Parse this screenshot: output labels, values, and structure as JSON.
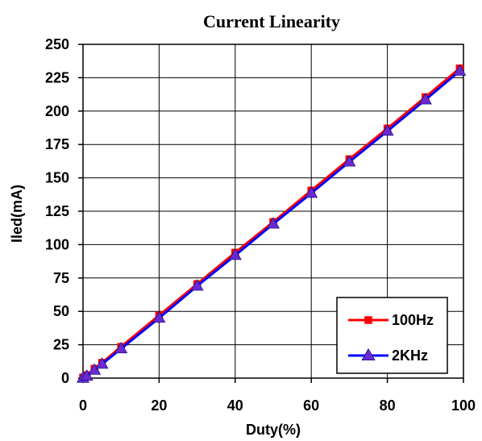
{
  "chart_data": {
    "type": "line",
    "title": "Current Linearity",
    "xlabel": "Duty(%)",
    "ylabel": "Iled(mA)",
    "xlim": [
      0,
      100
    ],
    "ylim": [
      0,
      250
    ],
    "xticks": [
      0,
      20,
      40,
      60,
      80,
      100
    ],
    "yticks": [
      0,
      25,
      50,
      75,
      100,
      125,
      150,
      175,
      200,
      225,
      250
    ],
    "grid": true,
    "legend_position": "bottom-right",
    "series": [
      {
        "name": "100Hz",
        "color": "#ff0000",
        "marker": "square",
        "points": [
          [
            0,
            0.5
          ],
          [
            1,
            2.3
          ],
          [
            3,
            7
          ],
          [
            5,
            11.5
          ],
          [
            10,
            23.5
          ],
          [
            20,
            47
          ],
          [
            30,
            70.5
          ],
          [
            40,
            94
          ],
          [
            50,
            117
          ],
          [
            60,
            140.5
          ],
          [
            70,
            164
          ],
          [
            80,
            187
          ],
          [
            90,
            210.5
          ],
          [
            99,
            232
          ]
        ]
      },
      {
        "name": "2KHz",
        "color": "#0000ff",
        "marker": "triangle",
        "points": [
          [
            0,
            0
          ],
          [
            1,
            1.5
          ],
          [
            3,
            6
          ],
          [
            5,
            10.5
          ],
          [
            10,
            22
          ],
          [
            20,
            45
          ],
          [
            30,
            69
          ],
          [
            40,
            92
          ],
          [
            50,
            115.5
          ],
          [
            60,
            138.5
          ],
          [
            70,
            162
          ],
          [
            80,
            185
          ],
          [
            90,
            208.5
          ],
          [
            99,
            230
          ]
        ]
      }
    ]
  }
}
